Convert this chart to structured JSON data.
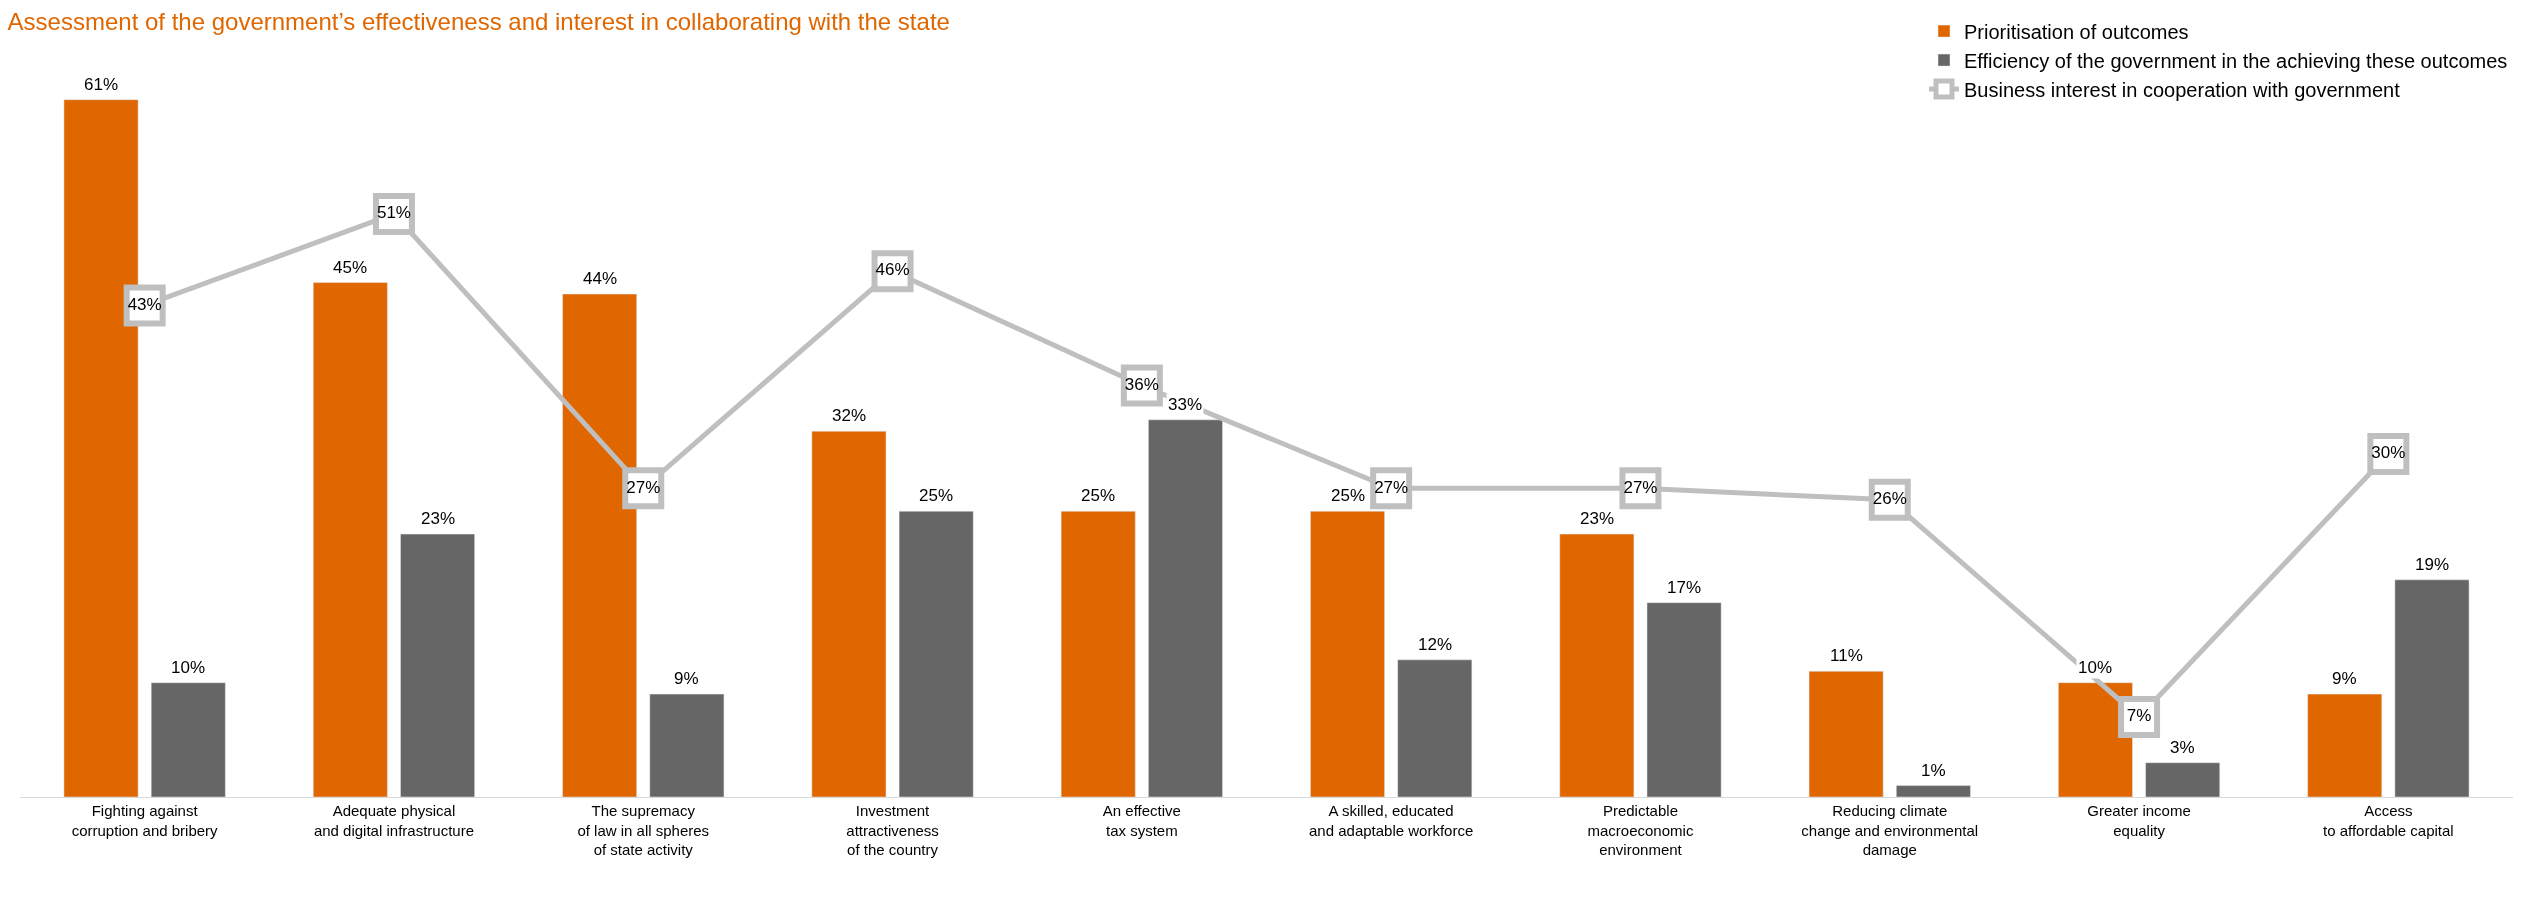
{
  "chart_data": {
    "type": "bar",
    "title": "Assessment of the government’s effectiveness and interest in collaborating with the state",
    "categories": [
      "Fighting against\ncorruption and bribery",
      "Adequate physical\nand digital infrastructure",
      "The supremacy\nof law in all spheres\nof state activity",
      "Investment\nattractiveness\nof the country",
      "An effective\ntax system",
      "A skilled, educated\nand adaptable workforce",
      "Predictable\nmacroeconomic\nenvironment",
      "Reducing climate\nchange and environmental\ndamage",
      "Greater income\nequality",
      "Access\nto affordable capital"
    ],
    "series": [
      {
        "name": "Prioritisation of outcomes",
        "color": "#e06600",
        "values": [
          61,
          45,
          44,
          32,
          25,
          25,
          23,
          11,
          10,
          9
        ],
        "value_labels": [
          "61%",
          "45%",
          "44%",
          "32%",
          "25%",
          "25%",
          "23%",
          "11%",
          "10%",
          "9%"
        ]
      },
      {
        "name": "Efficiency of the government in the achieving these outcomes",
        "color": "#666666",
        "values": [
          10,
          23,
          9,
          25,
          33,
          12,
          17,
          1,
          3,
          19
        ],
        "value_labels": [
          "10%",
          "23%",
          "9%",
          "25%",
          "33%",
          "12%",
          "17%",
          "1%",
          "3%",
          "19%"
        ]
      },
      {
        "name": "Business interest in cooperation with government",
        "type": "line",
        "color": "#bfbfbf",
        "marker": "square",
        "values": [
          43,
          51,
          27,
          46,
          36,
          27,
          27,
          26,
          7,
          30
        ],
        "value_labels": [
          "43%",
          "51%",
          "27%",
          "46%",
          "36%",
          "27%",
          "27%",
          "26%",
          "7%",
          "30%"
        ]
      }
    ],
    "legend": "top right",
    "tick_labels": "x"
  }
}
